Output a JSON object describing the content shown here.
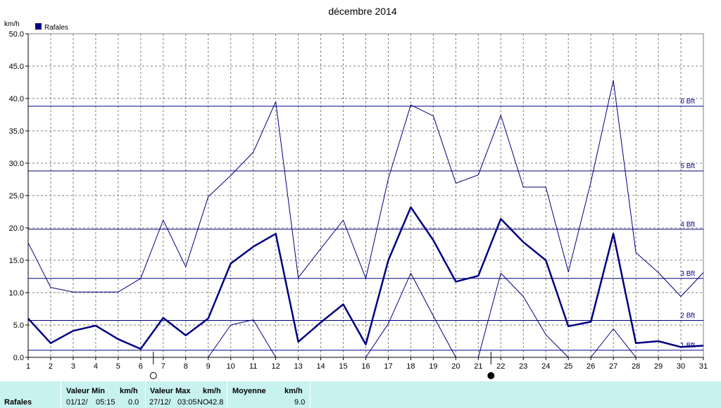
{
  "chart_data": {
    "type": "line",
    "title": "décembre 2014",
    "ylabel": "km/h",
    "legend": {
      "label": "Rafales",
      "color": "#000080",
      "position": "top-left"
    },
    "ylim": [
      0,
      50
    ],
    "y_ticks": [
      "0.0",
      "5.0",
      "10.0",
      "15.0",
      "20.0",
      "25.0",
      "30.0",
      "35.0",
      "40.0",
      "45.0",
      "50.0"
    ],
    "x": [
      1,
      2,
      3,
      4,
      5,
      6,
      7,
      8,
      9,
      10,
      11,
      12,
      13,
      14,
      15,
      16,
      17,
      18,
      19,
      20,
      21,
      22,
      23,
      24,
      25,
      26,
      27,
      28,
      29,
      30,
      31
    ],
    "grid": true,
    "series": [
      {
        "name": "Rafales",
        "role": "mean",
        "color": "#000080",
        "values": [
          6.0,
          2.2,
          4.1,
          4.9,
          2.8,
          1.3,
          6.1,
          3.4,
          6.0,
          14.5,
          17.1,
          19.1,
          2.4,
          5.4,
          8.2,
          2.0,
          15.0,
          23.2,
          18.1,
          11.7,
          12.6,
          21.4,
          17.8,
          15.0,
          4.8,
          5.5,
          19.1,
          2.2,
          2.5,
          1.6,
          1.8
        ]
      },
      {
        "role": "max",
        "color": "#000080",
        "values": [
          17.7,
          10.8,
          10.1,
          10.1,
          10.1,
          12.2,
          21.2,
          14.0,
          24.8,
          28.1,
          31.7,
          39.5,
          12.3,
          16.8,
          21.2,
          12.2,
          27.6,
          39.0,
          37.3,
          26.9,
          28.2,
          37.4,
          26.3,
          26.3,
          13.2,
          27.1,
          42.8,
          16.2,
          13.1,
          9.4,
          13.1
        ]
      },
      {
        "role": "min",
        "color": "#000080",
        "values": [
          null,
          null,
          null,
          null,
          null,
          null,
          null,
          null,
          0.0,
          5.0,
          5.8,
          0.0,
          null,
          null,
          null,
          0.0,
          5.2,
          13.0,
          6.4,
          0.0,
          0.0,
          13.0,
          9.4,
          3.5,
          0.0,
          0.0,
          4.4,
          0.0,
          null,
          null,
          null
        ]
      }
    ],
    "beaufort_lines": [
      {
        "label": "1 Bft",
        "value": 1.1
      },
      {
        "label": "2 Bft",
        "value": 5.7
      },
      {
        "label": "3 Bft",
        "value": 12.2
      },
      {
        "label": "4 Bft",
        "value": 19.8
      },
      {
        "label": "5 Bft",
        "value": 28.8
      },
      {
        "label": "6 Bft",
        "value": 38.8
      }
    ],
    "moon_phases": [
      {
        "day": 7,
        "phase": "full"
      },
      {
        "day": 22,
        "phase": "new"
      }
    ],
    "colors": {
      "grid": "#7f7f7f",
      "series": "#000080",
      "stats_bg": "#c8f2ef"
    }
  },
  "stats": {
    "row_label": "Rafales",
    "min": {
      "header": "Valeur Min",
      "unit": "km/h",
      "date": "01/12/",
      "time": "05:15",
      "value": "0.0"
    },
    "max": {
      "header": "Valeur Max",
      "unit": "km/h",
      "date": "27/12/",
      "time": "03:05",
      "dir": "NO",
      "value": "42.8"
    },
    "avg": {
      "header": "Moyenne",
      "unit": "km/h",
      "value": "9.0"
    }
  }
}
